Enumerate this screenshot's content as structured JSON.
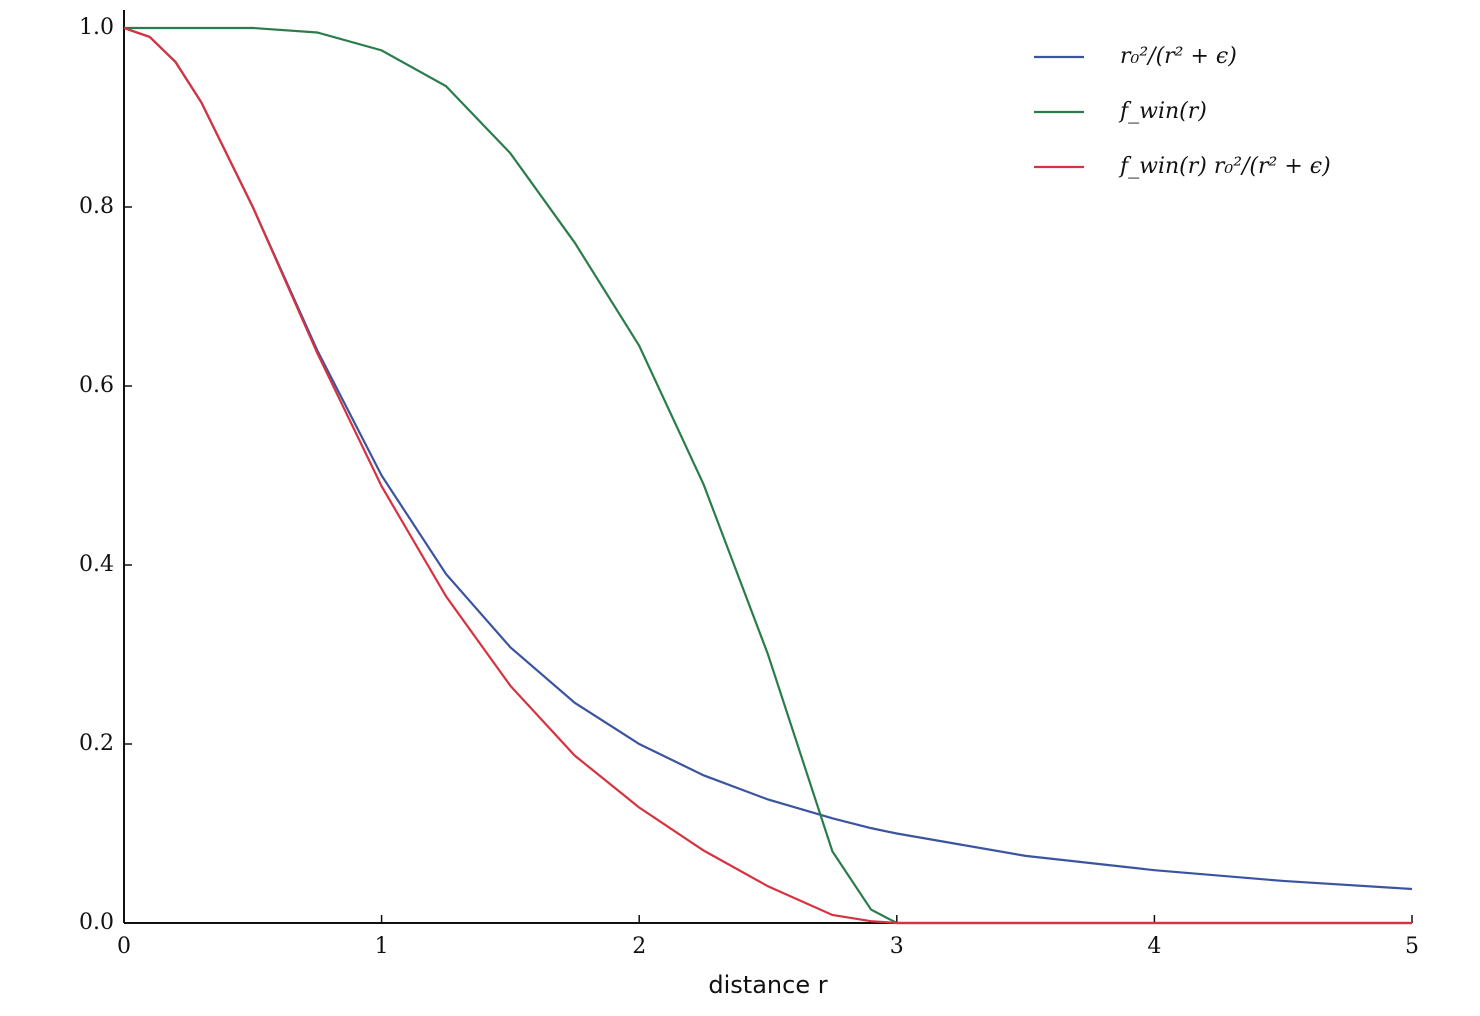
{
  "chart_data": {
    "type": "line",
    "x_label": "distance r",
    "x": [
      0,
      0.1,
      0.2,
      0.3,
      0.5,
      0.75,
      1,
      1.25,
      1.5,
      1.75,
      2,
      2.25,
      2.5,
      2.75,
      2.9,
      3,
      3.5,
      4,
      4.5,
      5
    ],
    "series": [
      {
        "name": "r₀²/(r² + ϵ)",
        "color": "#3b54a0",
        "values": [
          1,
          0.99,
          0.962,
          0.917,
          0.8,
          0.64,
          0.5,
          0.39,
          0.308,
          0.246,
          0.2,
          0.165,
          0.138,
          0.117,
          0.106,
          0.1,
          0.075,
          0.059,
          0.047,
          0.038
        ]
      },
      {
        "name": "f_win(r)",
        "color": "#2a7d4a",
        "values": [
          1,
          1,
          1,
          1,
          1,
          0.995,
          0.975,
          0.935,
          0.86,
          0.76,
          0.645,
          0.49,
          0.3,
          0.08,
          0.015,
          0,
          0,
          0,
          0,
          0
        ]
      },
      {
        "name": "f_win(r) r₀²/(r² + ϵ)",
        "color": "#d63240",
        "values": [
          1,
          0.99,
          0.962,
          0.917,
          0.8,
          0.637,
          0.488,
          0.365,
          0.265,
          0.187,
          0.129,
          0.081,
          0.041,
          0.009,
          0.002,
          0,
          0,
          0,
          0,
          0
        ]
      }
    ],
    "xlim": [
      0,
      5
    ],
    "xticks": [
      0,
      1,
      2,
      3,
      4,
      5
    ],
    "ylim": [
      0,
      1
    ],
    "yticks": [
      {
        "value": 0,
        "label": "0.0"
      },
      0.2,
      0.4,
      0.6,
      0.8,
      {
        "value": 1,
        "label": "1.0"
      }
    ],
    "legend": "upper right"
  }
}
